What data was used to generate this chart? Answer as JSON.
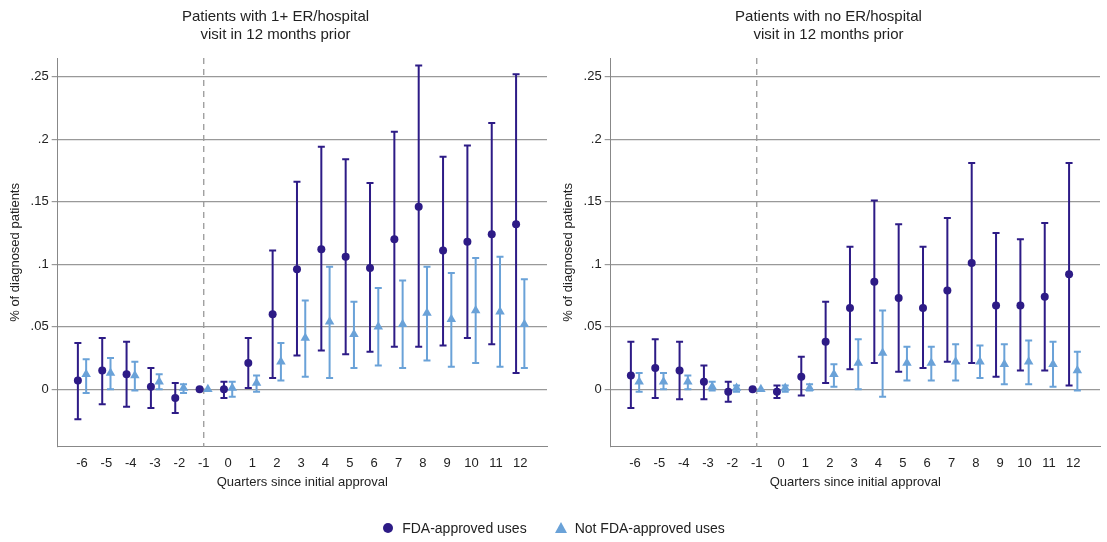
{
  "chart_data": [
    {
      "type": "scatter",
      "title": "Patients with 1+ ER/hospital\nvisit in 12 months prior",
      "xlabel": "Quarters since initial approval",
      "ylabel": "% of diagnosed patients",
      "xlim": [
        -7,
        13.1
      ],
      "xticks": [
        -6,
        -5,
        -4,
        -3,
        -2,
        -1,
        0,
        1,
        2,
        3,
        4,
        5,
        6,
        7,
        8,
        9,
        10,
        11,
        12
      ],
      "ylim": [
        -0.046,
        0.265
      ],
      "yticks": [
        0,
        {
          "value": 0.05,
          "label": ".05"
        },
        {
          "value": 0.1,
          "label": ".1"
        },
        {
          "value": 0.15,
          "label": ".15"
        },
        {
          "value": 0.2,
          "label": ".2"
        },
        {
          "value": 0.25,
          "label": ".25"
        }
      ],
      "grid": "y",
      "legend": "bottom",
      "ref_lines": [
        {
          "axis": "x",
          "value": -1,
          "color": "#999999",
          "line_style": "dashed"
        }
      ],
      "series": [
        {
          "name": "FDA-approved uses",
          "color": "#2d1b86",
          "marker": "circle",
          "x": [
            -6.17,
            -5.17,
            -4.17,
            -3.17,
            -2.17,
            -1.17,
            -0.17,
            0.83,
            1.83,
            2.83,
            3.83,
            4.83,
            5.83,
            6.83,
            7.83,
            8.83,
            9.83,
            10.83,
            11.83
          ],
          "values": [
            0.007,
            0.015,
            0.012,
            0.002,
            -0.007,
            0,
            0.0,
            0.021,
            0.06,
            0.096,
            0.112,
            0.106,
            0.097,
            0.12,
            0.146,
            0.111,
            0.118,
            0.124,
            0.132
          ],
          "errors": [
            [
              -0.024,
              0.037
            ],
            [
              -0.012,
              0.041
            ],
            [
              -0.014,
              0.038
            ],
            [
              -0.015,
              0.017
            ],
            [
              -0.019,
              0.005
            ],
            null,
            [
              -0.007,
              0.006
            ],
            [
              0.001,
              0.041
            ],
            [
              0.009,
              0.111
            ],
            [
              0.027,
              0.166
            ],
            [
              0.031,
              0.194
            ],
            [
              0.028,
              0.184
            ],
            [
              0.03,
              0.165
            ],
            [
              0.034,
              0.206
            ],
            [
              0.034,
              0.259
            ],
            [
              0.035,
              0.186
            ],
            [
              0.041,
              0.195
            ],
            [
              0.036,
              0.213
            ],
            [
              0.013,
              0.252
            ]
          ]
        },
        {
          "name": "Not FDA-approved uses",
          "color": "#6aa2d8",
          "marker": "triangle",
          "x": [
            -5.83,
            -4.83,
            -3.83,
            -2.83,
            -1.83,
            -0.83,
            0.17,
            1.17,
            2.17,
            3.17,
            4.17,
            5.17,
            6.17,
            7.17,
            8.17,
            9.17,
            10.17,
            11.17,
            12.17
          ],
          "values": [
            0.012,
            0.013,
            0.011,
            0.006,
            0.001,
            0,
            0.001,
            0.005,
            0.022,
            0.041,
            0.054,
            0.044,
            0.05,
            0.052,
            0.061,
            0.056,
            0.063,
            0.062,
            0.052
          ],
          "errors": [
            [
              -0.003,
              0.024
            ],
            [
              0.0,
              0.025
            ],
            [
              -0.001,
              0.022
            ],
            [
              0.0,
              0.012
            ],
            [
              -0.003,
              0.004
            ],
            null,
            [
              -0.006,
              0.006
            ],
            [
              -0.002,
              0.011
            ],
            [
              0.007,
              0.037
            ],
            [
              0.01,
              0.071
            ],
            [
              0.009,
              0.098
            ],
            [
              0.017,
              0.07
            ],
            [
              0.019,
              0.081
            ],
            [
              0.017,
              0.087
            ],
            [
              0.023,
              0.098
            ],
            [
              0.018,
              0.093
            ],
            [
              0.021,
              0.105
            ],
            [
              0.018,
              0.106
            ],
            [
              0.017,
              0.088
            ]
          ]
        }
      ]
    },
    {
      "type": "scatter",
      "title": "Patients with no ER/hospital\nvisit in 12 months prior",
      "xlabel": "Quarters since initial approval",
      "ylabel": "% of diagnosed patients",
      "xlim": [
        -7,
        13.1
      ],
      "xticks": [
        -6,
        -5,
        -4,
        -3,
        -2,
        -1,
        0,
        1,
        2,
        3,
        4,
        5,
        6,
        7,
        8,
        9,
        10,
        11,
        12
      ],
      "ylim": [
        -0.046,
        0.265
      ],
      "yticks": [
        0,
        {
          "value": 0.05,
          "label": ".05"
        },
        {
          "value": 0.1,
          "label": ".1"
        },
        {
          "value": 0.15,
          "label": ".15"
        },
        {
          "value": 0.2,
          "label": ".2"
        },
        {
          "value": 0.25,
          "label": ".25"
        }
      ],
      "grid": "y",
      "ref_lines": [
        {
          "axis": "x",
          "value": -1,
          "color": "#999999",
          "line_style": "dashed"
        }
      ],
      "series": [
        {
          "color": "#2d1b86",
          "marker": "circle",
          "x": [
            -6.17,
            -5.17,
            -4.17,
            -3.17,
            -2.17,
            -1.17,
            -0.17,
            0.83,
            1.83,
            2.83,
            3.83,
            4.83,
            5.83,
            6.83,
            7.83,
            8.83,
            9.83,
            10.83,
            11.83
          ],
          "values": [
            0.011,
            0.017,
            0.015,
            0.006,
            -0.002,
            0,
            -0.002,
            0.01,
            0.038,
            0.065,
            0.086,
            0.073,
            0.065,
            0.079,
            0.101,
            0.067,
            0.067,
            0.074,
            0.092
          ],
          "errors": [
            [
              -0.015,
              0.038
            ],
            [
              -0.007,
              0.04
            ],
            [
              -0.008,
              0.038
            ],
            [
              -0.008,
              0.019
            ],
            [
              -0.01,
              0.006
            ],
            null,
            [
              -0.007,
              0.003
            ],
            [
              -0.005,
              0.026
            ],
            [
              0.005,
              0.07
            ],
            [
              0.016,
              0.114
            ],
            [
              0.021,
              0.151
            ],
            [
              0.014,
              0.132
            ],
            [
              0.017,
              0.114
            ],
            [
              0.022,
              0.137
            ],
            [
              0.021,
              0.181
            ],
            [
              0.01,
              0.125
            ],
            [
              0.015,
              0.12
            ],
            [
              0.015,
              0.133
            ],
            [
              0.003,
              0.181
            ]
          ]
        },
        {
          "color": "#6aa2d8",
          "marker": "triangle",
          "x": [
            -5.83,
            -4.83,
            -3.83,
            -2.83,
            -1.83,
            -0.83,
            0.17,
            1.17,
            2.17,
            3.17,
            4.17,
            5.17,
            6.17,
            7.17,
            8.17,
            9.17,
            10.17,
            11.17,
            12.17
          ],
          "values": [
            0.006,
            0.006,
            0.006,
            0.002,
            0.001,
            0,
            0.001,
            0.001,
            0.012,
            0.021,
            0.029,
            0.021,
            0.021,
            0.022,
            0.022,
            0.02,
            0.022,
            0.02,
            0.015
          ],
          "errors": [
            [
              -0.002,
              0.013
            ],
            [
              0.0,
              0.013
            ],
            [
              0.0,
              0.011
            ],
            [
              -0.001,
              0.006
            ],
            [
              -0.002,
              0.003
            ],
            null,
            [
              -0.002,
              0.003
            ],
            [
              -0.001,
              0.004
            ],
            [
              0.002,
              0.02
            ],
            [
              0.0,
              0.04
            ],
            [
              -0.006,
              0.063
            ],
            [
              0.007,
              0.034
            ],
            [
              0.007,
              0.034
            ],
            [
              0.007,
              0.036
            ],
            [
              0.009,
              0.035
            ],
            [
              0.004,
              0.036
            ],
            [
              0.004,
              0.039
            ],
            [
              0.002,
              0.038
            ],
            [
              -0.001,
              0.03
            ]
          ]
        }
      ]
    }
  ]
}
